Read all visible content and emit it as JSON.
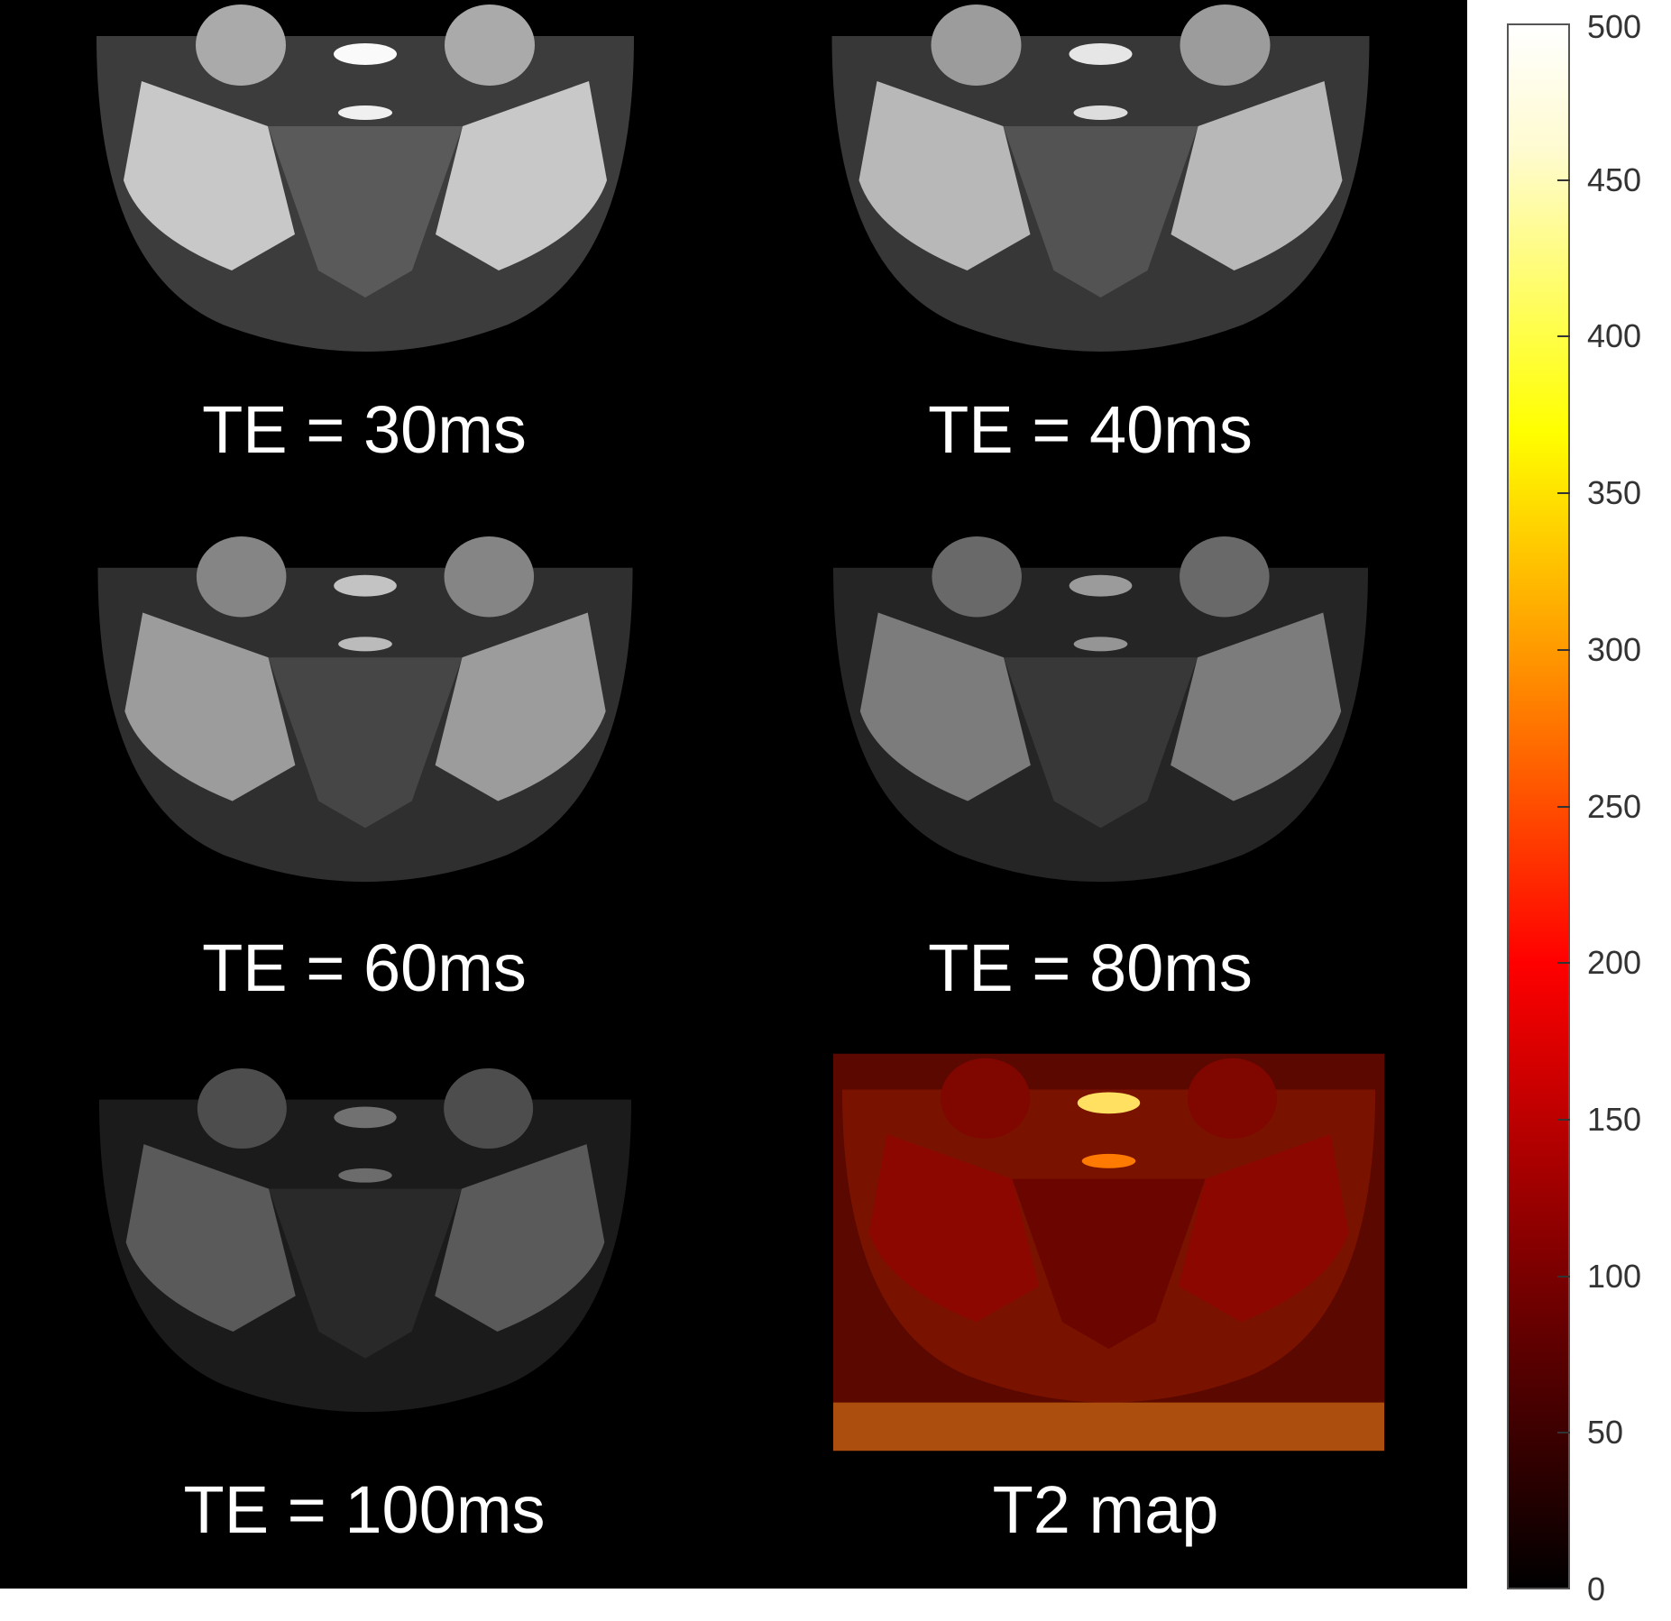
{
  "panels": [
    {
      "label": "TE = 30ms",
      "brightness": 1.0
    },
    {
      "label": "TE = 40ms",
      "brightness": 0.92
    },
    {
      "label": "TE = 60ms",
      "brightness": 0.78
    },
    {
      "label": "TE = 80ms",
      "brightness": 0.62
    },
    {
      "label": "TE = 100ms",
      "brightness": 0.45
    },
    {
      "label": "T2 map",
      "colormap": "hot"
    }
  ],
  "colorbar": {
    "colormap": "hot",
    "range": [
      0,
      500
    ],
    "ticks": [
      "0",
      "50",
      "100",
      "150",
      "200",
      "250",
      "300",
      "350",
      "400",
      "450",
      "500"
    ]
  },
  "colors": {
    "background": "#000000",
    "label": "#ffffff"
  }
}
